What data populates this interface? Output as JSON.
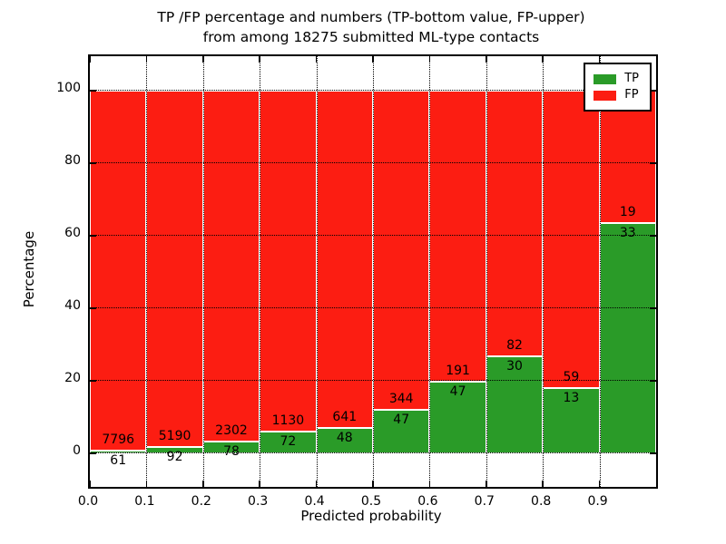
{
  "figure": {
    "title_line1": "TP /FP percentage and numbers (TP-bottom value, FP-upper)",
    "title_line2": "from among 18275 submitted ML-type contacts"
  },
  "axes": {
    "xlabel": "Predicted probability",
    "ylabel": "Percentage",
    "xtick_labels": [
      "0.0",
      "0.1",
      "0.2",
      "0.3",
      "0.4",
      "0.5",
      "0.6",
      "0.7",
      "0.8",
      "0.9"
    ],
    "xtick_values": [
      0.0,
      0.1,
      0.2,
      0.3,
      0.4,
      0.5,
      0.6,
      0.7,
      0.8,
      0.9
    ],
    "ytick_labels": [
      "0",
      "20",
      "40",
      "60",
      "80",
      "100"
    ],
    "ytick_values": [
      0,
      20,
      40,
      60,
      80,
      100
    ],
    "xlim": [
      0.0,
      1.0
    ],
    "ylim": [
      -9.25,
      109.5
    ],
    "grid": true
  },
  "legend": {
    "position": "upper right",
    "items": [
      {
        "label": "TP",
        "color": "#2a9b28"
      },
      {
        "label": "FP",
        "color": "#fc1d12"
      }
    ]
  },
  "chart_data": {
    "type": "bar",
    "stacked": true,
    "normalized_to_percent": 100,
    "title": "TP /FP percentage and numbers (TP-bottom value, FP-upper) from among 18275 submitted ML-type contacts",
    "xlabel": "Predicted probability",
    "ylabel": "Percentage",
    "total_contacts": 18275,
    "x_bins": [
      [
        0.0,
        0.1
      ],
      [
        0.1,
        0.2
      ],
      [
        0.2,
        0.3
      ],
      [
        0.3,
        0.4
      ],
      [
        0.4,
        0.5
      ],
      [
        0.5,
        0.6
      ],
      [
        0.6,
        0.7
      ],
      [
        0.7,
        0.8
      ],
      [
        0.8,
        0.9
      ],
      [
        0.9,
        1.0
      ]
    ],
    "series": [
      {
        "name": "TP",
        "color": "#2a9b28",
        "counts": [
          61,
          92,
          78,
          72,
          48,
          47,
          47,
          30,
          13,
          33
        ]
      },
      {
        "name": "FP",
        "color": "#fc1d12",
        "counts": [
          7796,
          5190,
          2302,
          1130,
          641,
          344,
          191,
          82,
          59,
          19
        ]
      }
    ],
    "tp_percent_of_bin": [
      0.78,
      1.74,
      3.28,
      5.99,
      6.97,
      12.02,
      19.75,
      26.79,
      18.06,
      63.46
    ],
    "label_note": "TP count printed below TP/FP boundary, FP count printed above it"
  }
}
